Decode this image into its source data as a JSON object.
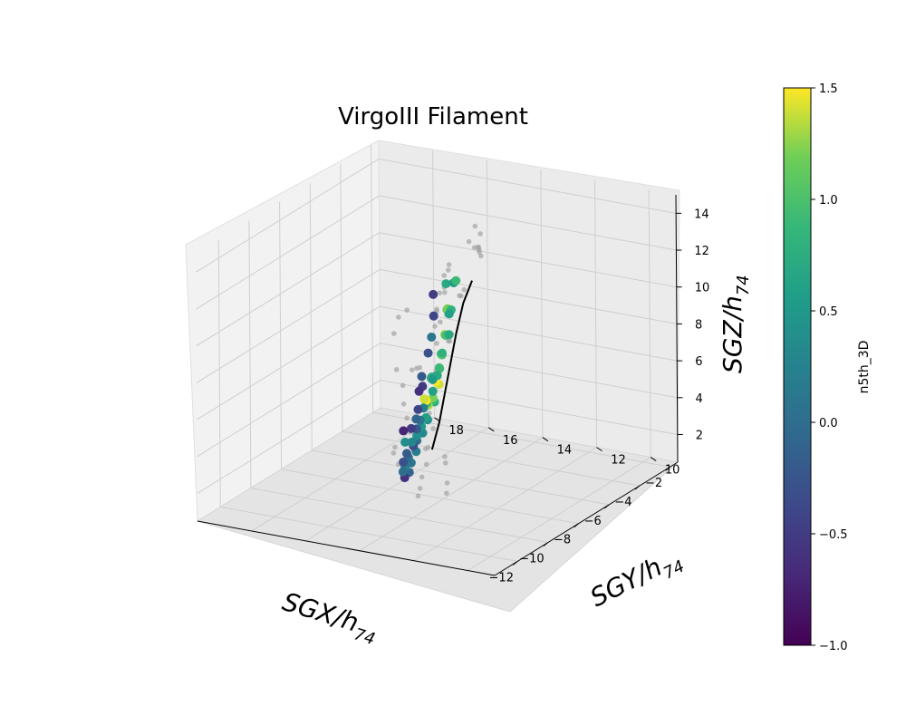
{
  "chart_data": {
    "type": "scatter",
    "projection": "3d",
    "title": "VirgoIII Filament",
    "x_axis": {
      "label_main": "SGX/h",
      "label_sub": "74",
      "ticks": [
        "−12",
        "−10",
        "−8",
        "−6",
        "−4",
        "−2"
      ],
      "range": [
        -13.5,
        -1.5
      ]
    },
    "y_axis": {
      "label_main": "SGY/h",
      "label_sub": "74",
      "ticks": [
        "10",
        "12",
        "14",
        "16",
        "18"
      ],
      "range": [
        9,
        20
      ]
    },
    "z_axis": {
      "label_main": "SGZ/h",
      "label_sub": "74",
      "ticks": [
        "2",
        "4",
        "6",
        "8",
        "10",
        "12",
        "14"
      ],
      "range": [
        0.5,
        15
      ]
    },
    "colorbar": {
      "label": "n5th_3D",
      "ticks": [
        "−1.0",
        "−0.5",
        "0.0",
        "0.5",
        "1.0",
        "1.5"
      ],
      "range": [
        -1.0,
        1.5
      ],
      "colormap": "viridis"
    },
    "grid": true,
    "spine_color": "#000000",
    "background_color": "#9e9e9e",
    "series": [
      {
        "kind": "filament-spine",
        "line": [
          {
            "x": -7.8,
            "y": 13.0,
            "z": 12.5
          },
          {
            "x": -7.5,
            "y": 13.5,
            "z": 11.0
          },
          {
            "x": -7.1,
            "y": 14.0,
            "z": 9.0
          },
          {
            "x": -6.6,
            "y": 14.5,
            "z": 7.0
          },
          {
            "x": -6.1,
            "y": 15.0,
            "z": 5.0
          },
          {
            "x": -5.6,
            "y": 15.5,
            "z": 3.0
          },
          {
            "x": -5.2,
            "y": 16.0,
            "z": 1.2
          }
        ]
      },
      {
        "kind": "member-galaxies",
        "points": [
          {
            "x": -9.5,
            "y": 13.0,
            "z": 13.2,
            "c": 0.7
          },
          {
            "x": -9.0,
            "y": 13.0,
            "z": 13.0,
            "c": 0.5
          },
          {
            "x": -8.5,
            "y": 13.2,
            "z": 12.8,
            "c": 0.9
          },
          {
            "x": -9.8,
            "y": 12.8,
            "z": 12.0,
            "c": 1.1
          },
          {
            "x": -9.4,
            "y": 13.0,
            "z": 11.8,
            "c": 1.2
          },
          {
            "x": -9.0,
            "y": 13.1,
            "z": 11.5,
            "c": 0.8
          },
          {
            "x": -8.6,
            "y": 13.4,
            "z": 11.0,
            "c": 0.6
          },
          {
            "x": -9.6,
            "y": 13.0,
            "z": 10.5,
            "c": 1.3
          },
          {
            "x": -9.2,
            "y": 13.2,
            "z": 10.2,
            "c": 1.0
          },
          {
            "x": -8.8,
            "y": 13.3,
            "z": 10.0,
            "c": 0.7
          },
          {
            "x": -10.2,
            "y": 12.8,
            "z": 9.8,
            "c": 0.3
          },
          {
            "x": -9.8,
            "y": 13.0,
            "z": 9.5,
            "c": 0.9
          },
          {
            "x": -9.3,
            "y": 13.3,
            "z": 9.2,
            "c": 1.1
          },
          {
            "x": -8.9,
            "y": 13.5,
            "z": 9.0,
            "c": 0.8
          },
          {
            "x": -9.6,
            "y": 13.2,
            "z": 8.6,
            "c": 1.0
          },
          {
            "x": -9.1,
            "y": 13.5,
            "z": 8.3,
            "c": 0.9
          },
          {
            "x": -10.0,
            "y": 13.0,
            "z": 8.0,
            "c": 1.4
          },
          {
            "x": -9.5,
            "y": 13.4,
            "z": 7.8,
            "c": 1.5
          },
          {
            "x": -8.7,
            "y": 13.8,
            "z": 7.6,
            "c": 0.7
          },
          {
            "x": -10.3,
            "y": 13.0,
            "z": 7.2,
            "c": 0.8
          },
          {
            "x": -9.7,
            "y": 13.4,
            "z": 7.0,
            "c": 1.2
          },
          {
            "x": -9.0,
            "y": 13.8,
            "z": 6.9,
            "c": 0.6
          },
          {
            "x": -8.4,
            "y": 14.2,
            "z": 7.2,
            "c": 0.9
          },
          {
            "x": -8.0,
            "y": 14.4,
            "z": 7.0,
            "c": 0.7
          },
          {
            "x": -7.6,
            "y": 14.6,
            "z": 6.6,
            "c": 0.5
          },
          {
            "x": -9.3,
            "y": 13.8,
            "z": 6.3,
            "c": 1.3
          },
          {
            "x": -8.7,
            "y": 14.2,
            "z": 6.0,
            "c": 0.8
          },
          {
            "x": -8.2,
            "y": 14.5,
            "z": 5.8,
            "c": 1.5
          },
          {
            "x": -7.8,
            "y": 14.8,
            "z": 5.6,
            "c": 1.4
          },
          {
            "x": -9.0,
            "y": 14.0,
            "z": 5.3,
            "c": 0.4
          },
          {
            "x": -8.4,
            "y": 14.4,
            "z": 5.0,
            "c": 0.6
          },
          {
            "x": -7.5,
            "y": 15.0,
            "z": 4.9,
            "c": 0.2
          },
          {
            "x": -8.8,
            "y": 14.3,
            "z": 4.4,
            "c": 0.3
          },
          {
            "x": -8.0,
            "y": 14.8,
            "z": 4.2,
            "c": 0.5
          },
          {
            "x": -7.2,
            "y": 15.3,
            "z": 4.0,
            "c": 0.1
          },
          {
            "x": -6.8,
            "y": 15.6,
            "z": 4.3,
            "c": -0.4
          },
          {
            "x": -8.3,
            "y": 14.8,
            "z": 3.6,
            "c": 0.0
          },
          {
            "x": -7.6,
            "y": 15.2,
            "z": 3.4,
            "c": 0.4
          },
          {
            "x": -6.9,
            "y": 15.6,
            "z": 3.3,
            "c": -0.2
          },
          {
            "x": -6.4,
            "y": 15.9,
            "z": 3.5,
            "c": -0.1
          },
          {
            "x": -8.0,
            "y": 15.0,
            "z": 2.8,
            "c": 0.2
          },
          {
            "x": -7.3,
            "y": 15.5,
            "z": 2.6,
            "c": -0.3
          },
          {
            "x": -6.7,
            "y": 15.9,
            "z": 2.4,
            "c": 0.3
          },
          {
            "x": -6.2,
            "y": 16.2,
            "z": 2.8,
            "c": -0.5
          },
          {
            "x": -7.8,
            "y": 15.3,
            "z": 2.0,
            "c": 0.1
          },
          {
            "x": -7.1,
            "y": 15.8,
            "z": 1.8,
            "c": 0.0
          },
          {
            "x": -6.5,
            "y": 16.2,
            "z": 1.6,
            "c": -0.2
          },
          {
            "x": -5.9,
            "y": 16.6,
            "z": 1.8,
            "c": 0.4
          },
          {
            "x": -5.3,
            "y": 17.0,
            "z": 2.0,
            "c": -0.7
          },
          {
            "x": -7.4,
            "y": 15.6,
            "z": 1.2,
            "c": -0.1
          },
          {
            "x": -6.8,
            "y": 16.1,
            "z": 1.0,
            "c": 0.2
          },
          {
            "x": -6.2,
            "y": 16.5,
            "z": 0.9,
            "c": -0.3
          },
          {
            "x": -7.0,
            "y": 16.0,
            "z": 0.6,
            "c": -0.6
          },
          {
            "x": -6.4,
            "y": 16.4,
            "z": 0.5,
            "c": 0.0
          },
          {
            "x": -7.7,
            "y": 14.5,
            "z": 11.3,
            "c": -0.5
          },
          {
            "x": -7.5,
            "y": 14.6,
            "z": 10.0,
            "c": -0.4
          },
          {
            "x": -7.3,
            "y": 14.8,
            "z": 8.7,
            "c": 0.1
          },
          {
            "x": -7.0,
            "y": 15.1,
            "z": 7.6,
            "c": -0.3
          },
          {
            "x": -6.9,
            "y": 15.4,
            "z": 6.2,
            "c": -0.2
          },
          {
            "x": -6.5,
            "y": 15.6,
            "z": 5.4,
            "c": -0.5
          },
          {
            "x": -6.2,
            "y": 15.9,
            "z": 4.9,
            "c": -0.6
          }
        ]
      },
      {
        "kind": "background-galaxies",
        "points": [
          {
            "x": -10.5,
            "y": 12.5,
            "z": 14.3
          },
          {
            "x": -10.0,
            "y": 12.6,
            "z": 14.6
          },
          {
            "x": -9.7,
            "y": 12.8,
            "z": 14.1
          },
          {
            "x": -10.8,
            "y": 12.5,
            "z": 13.5
          },
          {
            "x": -11.0,
            "y": 12.5,
            "z": 12.6
          },
          {
            "x": -10.6,
            "y": 12.6,
            "z": 11.8
          },
          {
            "x": -11.2,
            "y": 12.4,
            "z": 11.0
          },
          {
            "x": -10.9,
            "y": 12.6,
            "z": 9.3
          },
          {
            "x": -11.4,
            "y": 12.4,
            "z": 8.2
          },
          {
            "x": -11.0,
            "y": 12.8,
            "z": 7.0
          },
          {
            "x": -10.4,
            "y": 13.0,
            "z": 5.8
          },
          {
            "x": -11.1,
            "y": 12.8,
            "z": 5.2
          },
          {
            "x": -10.2,
            "y": 13.4,
            "z": 4.5
          },
          {
            "x": -9.8,
            "y": 13.6,
            "z": 3.4
          },
          {
            "x": -9.4,
            "y": 14.0,
            "z": 2.4
          },
          {
            "x": -9.0,
            "y": 14.3,
            "z": 1.5
          },
          {
            "x": -8.6,
            "y": 14.6,
            "z": 0.8
          },
          {
            "x": -6.5,
            "y": 13.5,
            "z": 13.5
          },
          {
            "x": -5.8,
            "y": 13.8,
            "z": 12.6
          },
          {
            "x": -5.2,
            "y": 14.2,
            "z": 12.4
          },
          {
            "x": -4.6,
            "y": 14.5,
            "z": 13.0
          },
          {
            "x": -4.2,
            "y": 14.8,
            "z": 12.0
          },
          {
            "x": -3.8,
            "y": 15.0,
            "z": 11.6
          },
          {
            "x": -3.4,
            "y": 15.4,
            "z": 11.4
          },
          {
            "x": -3.0,
            "y": 15.6,
            "z": 12.3
          },
          {
            "x": -2.7,
            "y": 16.0,
            "z": 11.2
          },
          {
            "x": -5.5,
            "y": 14.6,
            "z": 10.4
          },
          {
            "x": -5.0,
            "y": 15.0,
            "z": 9.7
          },
          {
            "x": -4.4,
            "y": 15.4,
            "z": 9.3
          },
          {
            "x": -3.9,
            "y": 15.8,
            "z": 9.8
          },
          {
            "x": -6.0,
            "y": 14.8,
            "z": 8.2
          },
          {
            "x": -5.4,
            "y": 15.2,
            "z": 7.4
          },
          {
            "x": -4.8,
            "y": 15.6,
            "z": 7.0
          },
          {
            "x": -6.2,
            "y": 15.2,
            "z": 6.0
          },
          {
            "x": -5.6,
            "y": 15.6,
            "z": 5.6
          },
          {
            "x": -5.0,
            "y": 16.0,
            "z": 5.2
          },
          {
            "x": -5.8,
            "y": 15.8,
            "z": 4.2
          },
          {
            "x": -5.2,
            "y": 16.2,
            "z": 3.8
          },
          {
            "x": -4.6,
            "y": 16.6,
            "z": 3.5
          },
          {
            "x": -4.0,
            "y": 17.0,
            "z": 3.9
          },
          {
            "x": -3.5,
            "y": 17.4,
            "z": 4.4
          },
          {
            "x": -3.0,
            "y": 17.8,
            "z": 4.0
          },
          {
            "x": -2.6,
            "y": 18.2,
            "z": 3.6
          },
          {
            "x": -2.5,
            "y": 18.6,
            "z": 2.6
          },
          {
            "x": -2.8,
            "y": 18.4,
            "z": 1.8
          },
          {
            "x": -3.3,
            "y": 18.0,
            "z": 1.4
          },
          {
            "x": -3.8,
            "y": 17.6,
            "z": 1.0
          },
          {
            "x": -4.4,
            "y": 17.2,
            "z": 0.8
          },
          {
            "x": -5.0,
            "y": 16.8,
            "z": 1.2
          },
          {
            "x": -2.2,
            "y": 19.0,
            "z": 3.2
          },
          {
            "x": -2.0,
            "y": 19.2,
            "z": 5.0
          },
          {
            "x": -2.4,
            "y": 18.8,
            "z": 6.2
          },
          {
            "x": -2.9,
            "y": 18.2,
            "z": 7.0
          },
          {
            "x": -7.4,
            "y": 14.2,
            "z": 1.0
          },
          {
            "x": -7.8,
            "y": 14.0,
            "z": 0.7
          },
          {
            "x": -8.2,
            "y": 13.8,
            "z": 2.6
          },
          {
            "x": -8.6,
            "y": 13.6,
            "z": 3.2
          },
          {
            "x": -6.6,
            "y": 15.0,
            "z": 9.8
          },
          {
            "x": -6.8,
            "y": 14.6,
            "z": 11.2
          },
          {
            "x": -3.6,
            "y": 16.4,
            "z": 8.8
          },
          {
            "x": -4.2,
            "y": 16.0,
            "z": 8.0
          },
          {
            "x": -3.2,
            "y": 17.0,
            "z": 6.6
          },
          {
            "x": -6.0,
            "y": 16.8,
            "z": 0.6
          },
          {
            "x": -5.6,
            "y": 17.2,
            "z": 0.9
          },
          {
            "x": -4.8,
            "y": 17.6,
            "z": 0.7
          }
        ]
      }
    ]
  }
}
